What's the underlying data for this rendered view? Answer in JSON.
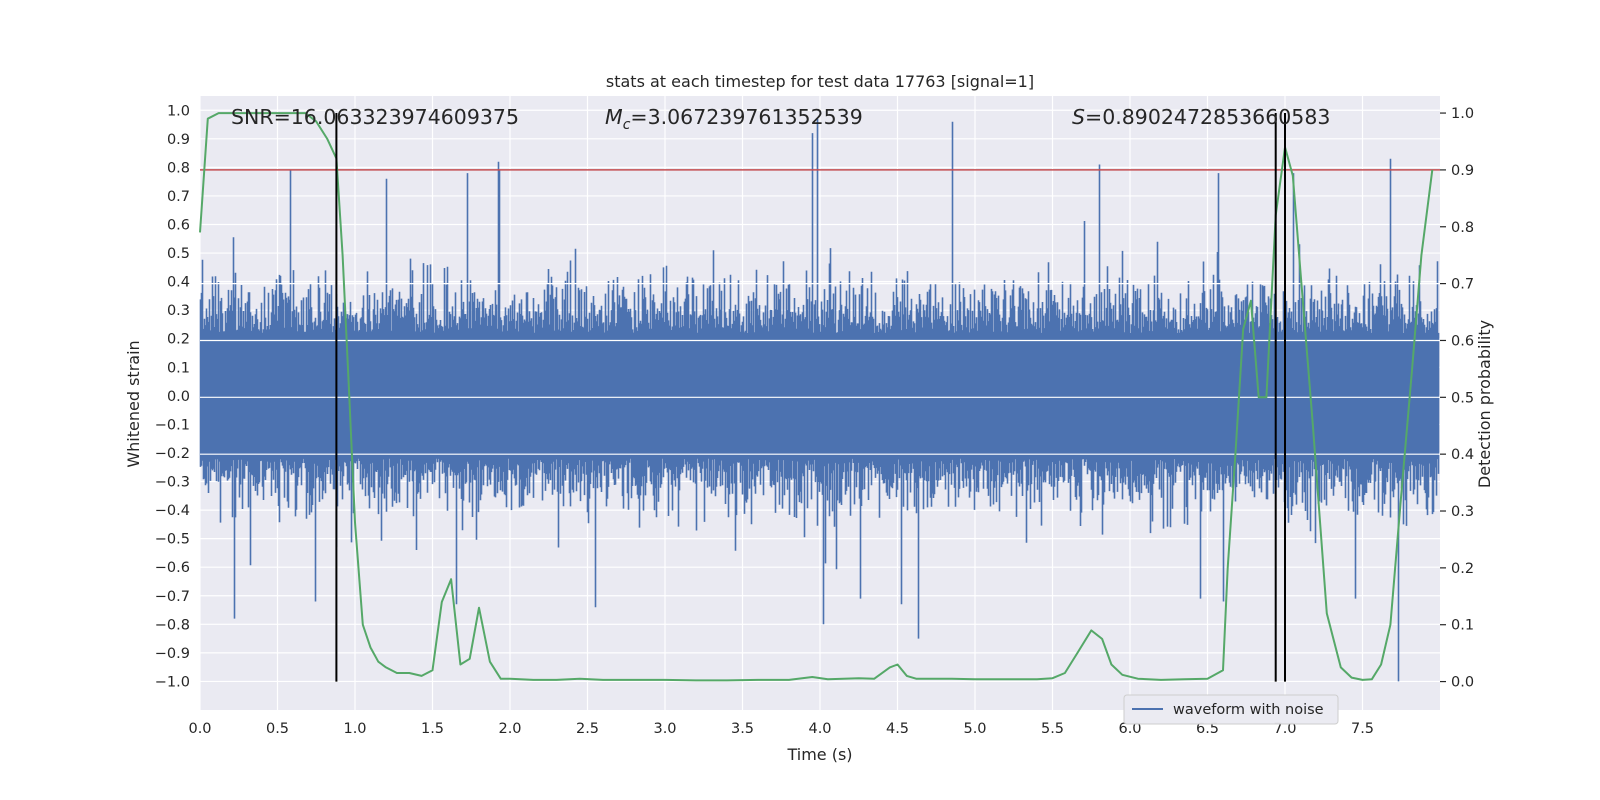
{
  "chart_data": {
    "type": "line",
    "title": "stats at each timestep for test data 17763 [signal=1]",
    "xlabel": "Time (s)",
    "ylabel": "Whitened strain",
    "y2label": "Detection probability",
    "xlim": [
      0.0,
      8.0
    ],
    "ylim": [
      -1.1,
      1.05
    ],
    "y2lim": [
      -0.05,
      1.03
    ],
    "grid": true,
    "legend_position": "lower-right",
    "x_ticks": [
      "0.0",
      "0.5",
      "1.0",
      "1.5",
      "2.0",
      "2.5",
      "3.0",
      "3.5",
      "4.0",
      "4.5",
      "5.0",
      "5.5",
      "6.0",
      "6.5",
      "7.0",
      "7.5"
    ],
    "y_ticks": [
      "1.0",
      "0.9",
      "0.8",
      "0.7",
      "0.6",
      "0.5",
      "0.4",
      "0.3",
      "0.2",
      "0.1",
      "0.0",
      "−0.1",
      "−0.2",
      "−0.3",
      "−0.4",
      "−0.5",
      "−0.6",
      "−0.7",
      "−0.8",
      "−0.9",
      "−1.0"
    ],
    "y2_ticks": [
      "1.0",
      "0.9",
      "0.8",
      "0.7",
      "0.6",
      "0.5",
      "0.4",
      "0.3",
      "0.2",
      "0.1",
      "0.0"
    ],
    "annotations": {
      "snr": "SNR=16.063323974609375",
      "mc_symbol": "M",
      "mc_sub": "c",
      "mc_value": "=3.067239761352539",
      "s_symbol": "S",
      "s_value": "=0.8902472853660583"
    },
    "threshold": 0.9,
    "vlines": [
      0.88,
      6.94,
      7.0
    ],
    "series": [
      {
        "name": "waveform with noise",
        "axis": "left",
        "color": "#4c72b0",
        "description_levels": {
          "typical_band": [
            -0.45,
            0.45
          ],
          "max_spike": 0.97,
          "min_spike": -1.0
        }
      },
      {
        "name": "",
        "axis": "right",
        "color": "#55a868",
        "x": [
          0.0,
          0.05,
          0.12,
          0.2,
          0.3,
          0.4,
          0.5,
          0.6,
          0.68,
          0.75,
          0.82,
          0.88,
          0.92,
          0.96,
          1.0,
          1.05,
          1.1,
          1.15,
          1.2,
          1.27,
          1.35,
          1.43,
          1.5,
          1.56,
          1.62,
          1.68,
          1.74,
          1.8,
          1.87,
          1.94,
          2.0,
          2.15,
          2.3,
          2.45,
          2.6,
          2.8,
          3.0,
          3.2,
          3.4,
          3.6,
          3.8,
          3.95,
          4.05,
          4.15,
          4.25,
          4.35,
          4.45,
          4.5,
          4.56,
          4.62,
          4.7,
          4.85,
          5.0,
          5.2,
          5.4,
          5.5,
          5.58,
          5.66,
          5.75,
          5.82,
          5.88,
          5.95,
          6.05,
          6.2,
          6.35,
          6.5,
          6.6,
          6.63,
          6.68,
          6.73,
          6.78,
          6.83,
          6.88,
          6.94,
          7.0,
          7.05,
          7.1,
          7.18,
          7.27,
          7.36,
          7.43,
          7.5,
          7.56,
          7.62,
          7.68,
          7.75,
          7.82,
          7.88,
          7.95
        ],
        "values": [
          0.79,
          0.99,
          1.0,
          1.0,
          1.0,
          1.0,
          1.0,
          1.0,
          1.0,
          0.985,
          0.955,
          0.92,
          0.75,
          0.52,
          0.28,
          0.1,
          0.06,
          0.035,
          0.025,
          0.015,
          0.015,
          0.01,
          0.02,
          0.14,
          0.18,
          0.03,
          0.04,
          0.13,
          0.035,
          0.005,
          0.005,
          0.003,
          0.003,
          0.005,
          0.003,
          0.003,
          0.003,
          0.002,
          0.002,
          0.003,
          0.003,
          0.008,
          0.004,
          0.005,
          0.006,
          0.005,
          0.025,
          0.03,
          0.01,
          0.005,
          0.005,
          0.005,
          0.004,
          0.004,
          0.004,
          0.006,
          0.015,
          0.05,
          0.09,
          0.075,
          0.03,
          0.012,
          0.005,
          0.003,
          0.004,
          0.005,
          0.02,
          0.2,
          0.4,
          0.62,
          0.67,
          0.5,
          0.5,
          0.82,
          0.94,
          0.89,
          0.72,
          0.45,
          0.12,
          0.025,
          0.007,
          0.003,
          0.004,
          0.03,
          0.1,
          0.33,
          0.55,
          0.75,
          0.9
        ]
      },
      {
        "name": "",
        "axis": "right",
        "color": "#c44e52",
        "kind": "threshold",
        "values": [
          0.9,
          0.9
        ]
      }
    ]
  }
}
